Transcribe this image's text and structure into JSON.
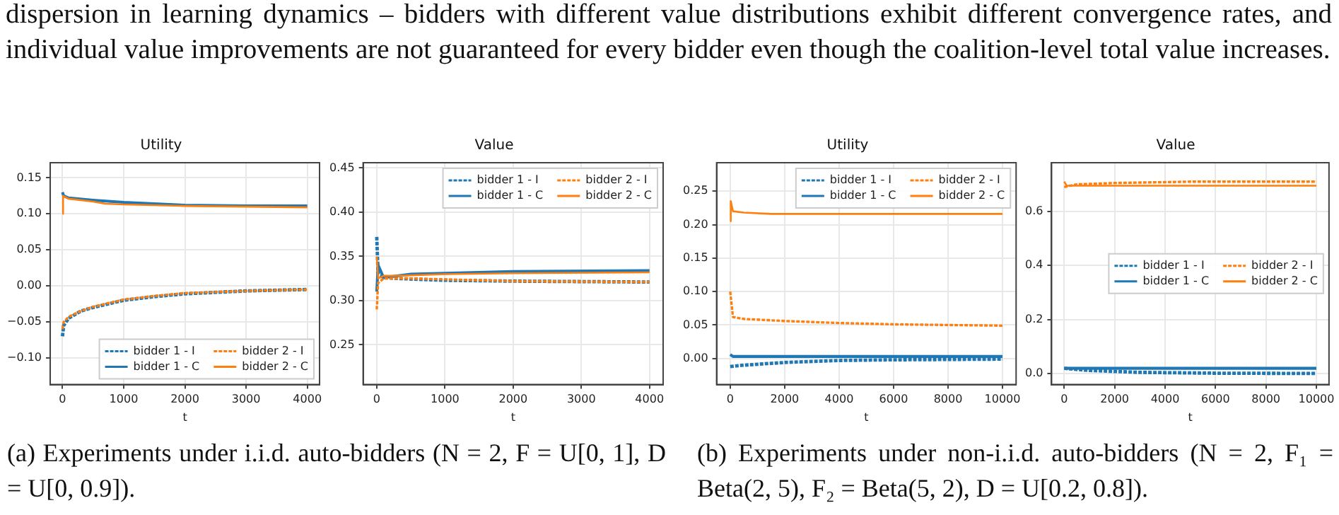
{
  "chart_data": [
    {
      "type": "line",
      "title": "Utility",
      "xlabel": "t",
      "annotations": [
        "dispersion in learning dynamics – bidders with different value distributions exhibit different convergence rates, and individual value improvements are not guaranteed for every bidder even though the coalition-level total value increases.",
        "(a) Experiments under i.i.d. auto-bidders (N = 2, F = U[0, 1], D = U[0, 0.9])."
      ],
      "xlim": [
        -200,
        4200
      ],
      "xticks": [
        0,
        1000,
        2000,
        3000,
        4000
      ],
      "ylim": [
        -0.137,
        0.171
      ],
      "yticks": [
        {
          "value": -0.1,
          "label": "−0.10"
        },
        {
          "value": -0.05,
          "label": "−0.05"
        },
        {
          "value": 0,
          "label": "0.00"
        },
        {
          "value": 0.05,
          "label": "0.05"
        },
        {
          "value": 0.1,
          "label": "0.10"
        },
        {
          "value": 0.15,
          "label": "0.15"
        }
      ],
      "grid": true,
      "legend": "bottom right",
      "marker": "none",
      "series": [
        {
          "name": "bidder 1 - I",
          "color": "#1f77b4",
          "line_style": "dashed",
          "x": [
            0,
            20,
            100,
            300,
            500,
            1000,
            1500,
            2000,
            3000,
            4000
          ],
          "values": [
            -0.07,
            -0.055,
            -0.045,
            -0.035,
            -0.03,
            -0.02,
            -0.015,
            -0.011,
            -0.007,
            -0.005
          ]
        },
        {
          "name": "bidder 1 - C",
          "color": "#1f77b4",
          "line_style": "solid",
          "x": [
            0,
            20,
            100,
            500,
            1000,
            2000,
            3000,
            4000
          ],
          "values": [
            0.13,
            0.125,
            0.122,
            0.119,
            0.116,
            0.112,
            0.111,
            0.111
          ]
        },
        {
          "name": "bidder 2 - I",
          "color": "#ff7f0e",
          "line_style": "dashed",
          "x": [
            0,
            20,
            100,
            300,
            500,
            1000,
            1500,
            2000,
            3000,
            4000
          ],
          "values": [
            -0.06,
            -0.05,
            -0.043,
            -0.035,
            -0.029,
            -0.019,
            -0.014,
            -0.01,
            -0.007,
            -0.005
          ]
        },
        {
          "name": "bidder 2 - C",
          "color": "#ff7f0e",
          "line_style": "solid",
          "x": [
            0,
            10,
            100,
            500,
            700,
            1000,
            2000,
            3000,
            4000
          ],
          "values": [
            0.1,
            0.125,
            0.121,
            0.117,
            0.114,
            0.113,
            0.111,
            0.11,
            0.109
          ]
        }
      ]
    },
    {
      "type": "line",
      "title": "Value",
      "xlabel": "t",
      "xlim": [
        -200,
        4200
      ],
      "xticks": [
        0,
        1000,
        2000,
        3000,
        4000
      ],
      "ylim": [
        0.205,
        0.456
      ],
      "yticks": [
        {
          "value": 0.25,
          "label": "0.25"
        },
        {
          "value": 0.3,
          "label": "0.30"
        },
        {
          "value": 0.35,
          "label": "0.35"
        },
        {
          "value": 0.4,
          "label": "0.40"
        },
        {
          "value": 0.45,
          "label": "0.45"
        }
      ],
      "grid": true,
      "legend": "top right",
      "marker": "none",
      "series": [
        {
          "name": "bidder 1 - I",
          "color": "#1f77b4",
          "line_style": "dashed",
          "x": [
            0,
            20,
            100,
            300,
            1000,
            2000,
            4000
          ],
          "values": [
            0.372,
            0.33,
            0.326,
            0.325,
            0.323,
            0.322,
            0.321
          ]
        },
        {
          "name": "bidder 1 - C",
          "color": "#1f77b4",
          "line_style": "solid",
          "x": [
            0,
            20,
            100,
            300,
            500,
            1000,
            2000,
            4000
          ],
          "values": [
            0.31,
            0.34,
            0.326,
            0.328,
            0.33,
            0.331,
            0.333,
            0.334
          ]
        },
        {
          "name": "bidder 2 - I",
          "color": "#ff7f0e",
          "line_style": "dashed",
          "x": [
            0,
            20,
            100,
            500,
            1000,
            2000,
            4000
          ],
          "values": [
            0.29,
            0.32,
            0.325,
            0.325,
            0.324,
            0.322,
            0.321
          ]
        },
        {
          "name": "bidder 2 - C",
          "color": "#ff7f0e",
          "line_style": "solid",
          "x": [
            0,
            20,
            100,
            300,
            1000,
            2000,
            4000
          ],
          "values": [
            0.35,
            0.325,
            0.328,
            0.328,
            0.33,
            0.331,
            0.332
          ]
        }
      ]
    },
    {
      "type": "line",
      "title": "Utility",
      "xlabel": "t",
      "annotations": [
        "(b) Experiments under non-i.i.d. auto-bidders (N = 2, F₁ = Beta(2, 5), F₂ = Beta(5, 2), D = U[0.2, 0.8])."
      ],
      "xlim": [
        -500,
        10500
      ],
      "xticks": [
        0,
        2000,
        4000,
        6000,
        8000,
        10000
      ],
      "ylim": [
        -0.039,
        0.2925
      ],
      "yticks": [
        {
          "value": 0,
          "label": "0.00"
        },
        {
          "value": 0.05,
          "label": "0.05"
        },
        {
          "value": 0.1,
          "label": "0.10"
        },
        {
          "value": 0.15,
          "label": "0.15"
        },
        {
          "value": 0.2,
          "label": "0.20"
        },
        {
          "value": 0.25,
          "label": "0.25"
        }
      ],
      "grid": true,
      "legend": "top right",
      "marker": "none",
      "series": [
        {
          "name": "bidder 1 - I",
          "color": "#1f77b4",
          "line_style": "dashed",
          "x": [
            0,
            500,
            2000,
            4000,
            6000,
            10000
          ],
          "values": [
            -0.012,
            -0.01,
            -0.006,
            -0.003,
            -0.002,
            -0.001
          ]
        },
        {
          "name": "bidder 1 - C",
          "color": "#1f77b4",
          "line_style": "solid",
          "x": [
            0,
            100,
            10000
          ],
          "values": [
            0.006,
            0.003,
            0.003
          ]
        },
        {
          "name": "bidder 2 - I",
          "color": "#ff7f0e",
          "line_style": "dashed",
          "x": [
            0,
            100,
            500,
            2000,
            4000,
            6000,
            8000,
            10000
          ],
          "values": [
            0.1,
            0.062,
            0.059,
            0.056,
            0.053,
            0.051,
            0.05,
            0.049
          ]
        },
        {
          "name": "bidder 2 - C",
          "color": "#ff7f0e",
          "line_style": "solid",
          "x": [
            0,
            20,
            100,
            500,
            1500,
            10000
          ],
          "values": [
            0.205,
            0.235,
            0.22,
            0.218,
            0.216,
            0.216
          ]
        }
      ]
    },
    {
      "type": "line",
      "title": "Value",
      "xlabel": "t",
      "xlim": [
        -500,
        10500
      ],
      "xticks": [
        0,
        2000,
        4000,
        6000,
        8000,
        10000
      ],
      "ylim": [
        -0.04,
        0.78
      ],
      "yticks": [
        {
          "value": 0,
          "label": "0.0"
        },
        {
          "value": 0.2,
          "label": "0.2"
        },
        {
          "value": 0.4,
          "label": "0.4"
        },
        {
          "value": 0.6,
          "label": "0.6"
        }
      ],
      "grid": true,
      "legend": "center right",
      "marker": "none",
      "series": [
        {
          "name": "bidder 1 - I",
          "color": "#1f77b4",
          "line_style": "dashed",
          "x": [
            0,
            1000,
            3000,
            6000,
            10000
          ],
          "values": [
            0.02,
            0.012,
            0.005,
            0.002,
            0.001
          ]
        },
        {
          "name": "bidder 1 - C",
          "color": "#1f77b4",
          "line_style": "solid",
          "x": [
            0,
            10000
          ],
          "values": [
            0.02,
            0.02
          ]
        },
        {
          "name": "bidder 2 - I",
          "color": "#ff7f0e",
          "line_style": "dashed",
          "x": [
            0,
            500,
            2000,
            5000,
            10000
          ],
          "values": [
            0.69,
            0.7,
            0.705,
            0.71,
            0.71
          ]
        },
        {
          "name": "bidder 2 - C",
          "color": "#ff7f0e",
          "line_style": "solid",
          "x": [
            0,
            100,
            1000,
            10000
          ],
          "values": [
            0.71,
            0.695,
            0.695,
            0.695
          ]
        }
      ]
    }
  ]
}
